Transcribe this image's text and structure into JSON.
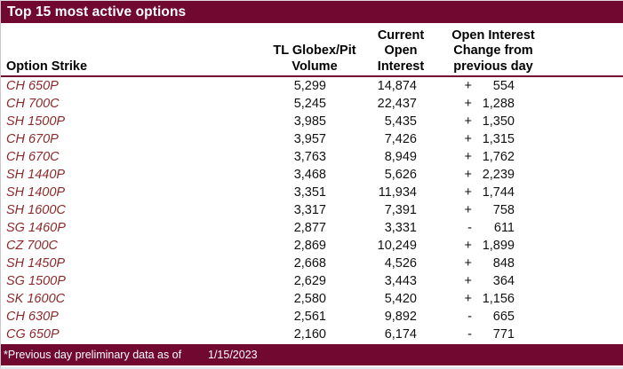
{
  "title": "Top 15 most active options",
  "colors": {
    "accent_maroon": "#700830",
    "strike_text": "#8a2a2b",
    "header_rule": "#700830",
    "title_text": "#ffffff"
  },
  "table": {
    "headers": {
      "strike": "Option Strike",
      "volume_line1": "TL Globex/Pit",
      "volume_line2": "Volume",
      "oi_line1": "Current",
      "oi_line2": "Open",
      "oi_line3": "Interest",
      "change_line1": "Open Interest",
      "change_line2": "Change from",
      "change_line3": "previous day"
    },
    "rows": [
      {
        "strike": "CH 650P",
        "volume": "5,299",
        "open_interest": "14,874",
        "change_sign": "+",
        "change_value": "554"
      },
      {
        "strike": "CH 700C",
        "volume": "5,245",
        "open_interest": "22,437",
        "change_sign": "+",
        "change_value": "1,288"
      },
      {
        "strike": "SH 1500P",
        "volume": "3,985",
        "open_interest": "5,435",
        "change_sign": "+",
        "change_value": "1,350"
      },
      {
        "strike": "CH 670P",
        "volume": "3,957",
        "open_interest": "7,426",
        "change_sign": "+",
        "change_value": "1,315"
      },
      {
        "strike": "CH 670C",
        "volume": "3,763",
        "open_interest": "8,949",
        "change_sign": "+",
        "change_value": "1,762"
      },
      {
        "strike": "SH 1440P",
        "volume": "3,468",
        "open_interest": "5,626",
        "change_sign": "+",
        "change_value": "2,239"
      },
      {
        "strike": "SH 1400P",
        "volume": "3,351",
        "open_interest": "11,934",
        "change_sign": "+",
        "change_value": "1,744"
      },
      {
        "strike": "SH 1600C",
        "volume": "3,317",
        "open_interest": "7,391",
        "change_sign": "+",
        "change_value": "758"
      },
      {
        "strike": "SG 1460P",
        "volume": "2,877",
        "open_interest": "3,331",
        "change_sign": "-",
        "change_value": "611"
      },
      {
        "strike": "CZ 700C",
        "volume": "2,869",
        "open_interest": "10,249",
        "change_sign": "+",
        "change_value": "1,899"
      },
      {
        "strike": "SH 1450P",
        "volume": "2,668",
        "open_interest": "4,526",
        "change_sign": "+",
        "change_value": "848"
      },
      {
        "strike": "SG 1500P",
        "volume": "2,629",
        "open_interest": "3,443",
        "change_sign": "+",
        "change_value": "364"
      },
      {
        "strike": "SK 1600C",
        "volume": "2,580",
        "open_interest": "5,420",
        "change_sign": "+",
        "change_value": "1,156"
      },
      {
        "strike": "CH 630P",
        "volume": "2,561",
        "open_interest": "9,892",
        "change_sign": "-",
        "change_value": "665"
      },
      {
        "strike": "CG 650P",
        "volume": "2,160",
        "open_interest": "6,174",
        "change_sign": "-",
        "change_value": "771"
      }
    ]
  },
  "footer": {
    "note": "*Previous day preliminary data as of",
    "date": "1/15/2023"
  }
}
